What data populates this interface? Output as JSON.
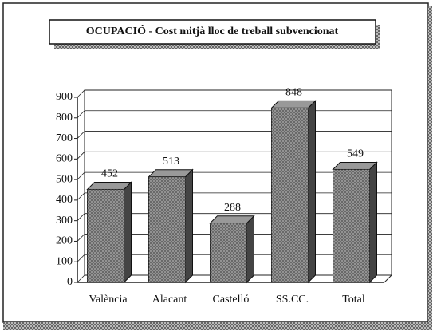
{
  "chart_data": {
    "type": "bar",
    "title": "OCUPACIÓ - Cost mitjà lloc de treball subvencionat",
    "categories": [
      "València",
      "Alacant",
      "Castelló",
      "SS.CC.",
      "Total"
    ],
    "values": [
      452,
      513,
      288,
      848,
      549
    ],
    "color": "#6b6b6b",
    "ylim": [
      0,
      900
    ],
    "yticks": [
      0,
      100,
      200,
      300,
      400,
      500,
      600,
      700,
      800,
      900
    ],
    "grid": true
  }
}
